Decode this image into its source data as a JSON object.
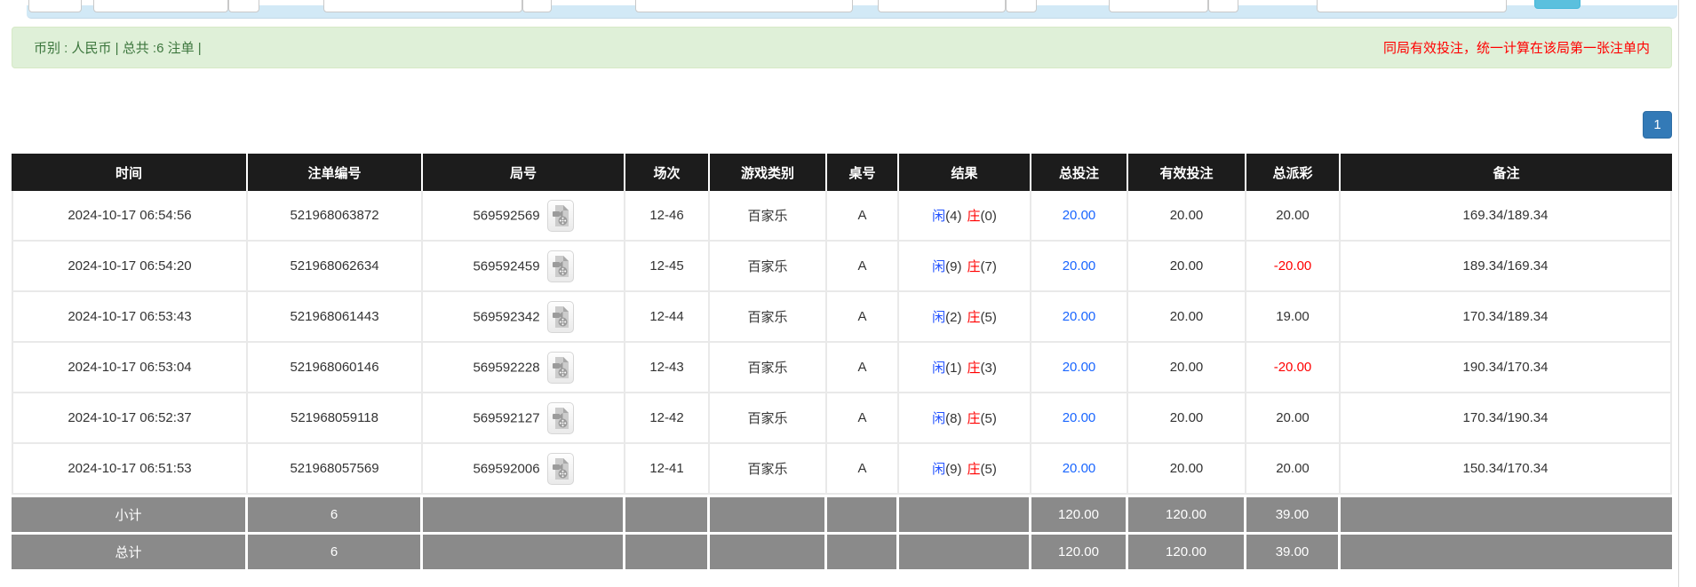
{
  "summary_bar": {
    "left_text": "币别 : 人民币 | 总共 :6 注单 |",
    "right_notice": "同局有效投注，统一计算在该局第一张注单内"
  },
  "pagination": {
    "current_page": "1"
  },
  "colors": {
    "header_bg": "#1c1c1c",
    "summary_row_bg": "#8a8a8a",
    "success_bar_bg": "#dff0d8",
    "success_text": "#3c763d",
    "notice_red": "#ff0000",
    "player_blue": "#2050ff",
    "banker_red": "#ff0000",
    "link_blue": "#1a66ff",
    "pagination_blue": "#337ab7"
  },
  "icons": {
    "video_icon": "video-replay-icon"
  },
  "table": {
    "headers": [
      "时间",
      "注单编号",
      "局号",
      "场次",
      "游戏类别",
      "桌号",
      "结果",
      "总投注",
      "有效投注",
      "总派彩",
      "备注"
    ],
    "rows": [
      {
        "time": "2024-10-17 06:54:56",
        "bet_id": "521968063872",
        "round_id": "569592569",
        "session": "12-46",
        "game_type": "百家乐",
        "table_no": "A",
        "result": {
          "player_label": "闲",
          "player_score": "(4)",
          "banker_label": "庄",
          "banker_score": "(0)"
        },
        "total_bet": "20.00",
        "valid_bet": "20.00",
        "payout": "20.00",
        "remark": "169.34/189.34"
      },
      {
        "time": "2024-10-17 06:54:20",
        "bet_id": "521968062634",
        "round_id": "569592459",
        "session": "12-45",
        "game_type": "百家乐",
        "table_no": "A",
        "result": {
          "player_label": "闲",
          "player_score": "(9)",
          "banker_label": "庄",
          "banker_score": "(7)"
        },
        "total_bet": "20.00",
        "valid_bet": "20.00",
        "payout": "-20.00",
        "remark": "189.34/169.34"
      },
      {
        "time": "2024-10-17 06:53:43",
        "bet_id": "521968061443",
        "round_id": "569592342",
        "session": "12-44",
        "game_type": "百家乐",
        "table_no": "A",
        "result": {
          "player_label": "闲",
          "player_score": "(2)",
          "banker_label": "庄",
          "banker_score": "(5)"
        },
        "total_bet": "20.00",
        "valid_bet": "20.00",
        "payout": "19.00",
        "remark": "170.34/189.34"
      },
      {
        "time": "2024-10-17 06:53:04",
        "bet_id": "521968060146",
        "round_id": "569592228",
        "session": "12-43",
        "game_type": "百家乐",
        "table_no": "A",
        "result": {
          "player_label": "闲",
          "player_score": "(1)",
          "banker_label": "庄",
          "banker_score": "(3)"
        },
        "total_bet": "20.00",
        "valid_bet": "20.00",
        "payout": "-20.00",
        "remark": "190.34/170.34"
      },
      {
        "time": "2024-10-17 06:52:37",
        "bet_id": "521968059118",
        "round_id": "569592127",
        "session": "12-42",
        "game_type": "百家乐",
        "table_no": "A",
        "result": {
          "player_label": "闲",
          "player_score": "(8)",
          "banker_label": "庄",
          "banker_score": "(5)"
        },
        "total_bet": "20.00",
        "valid_bet": "20.00",
        "payout": "20.00",
        "remark": "170.34/190.34"
      },
      {
        "time": "2024-10-17 06:51:53",
        "bet_id": "521968057569",
        "round_id": "569592006",
        "session": "12-41",
        "game_type": "百家乐",
        "table_no": "A",
        "result": {
          "player_label": "闲",
          "player_score": "(9)",
          "banker_label": "庄",
          "banker_score": "(5)"
        },
        "total_bet": "20.00",
        "valid_bet": "20.00",
        "payout": "20.00",
        "remark": "150.34/170.34"
      }
    ],
    "subtotal": {
      "label": "小计",
      "count": "6",
      "total_bet": "120.00",
      "valid_bet": "120.00",
      "payout": "39.00"
    },
    "grand_total": {
      "label": "总计",
      "count": "6",
      "total_bet": "120.00",
      "valid_bet": "120.00",
      "payout": "39.00"
    }
  }
}
